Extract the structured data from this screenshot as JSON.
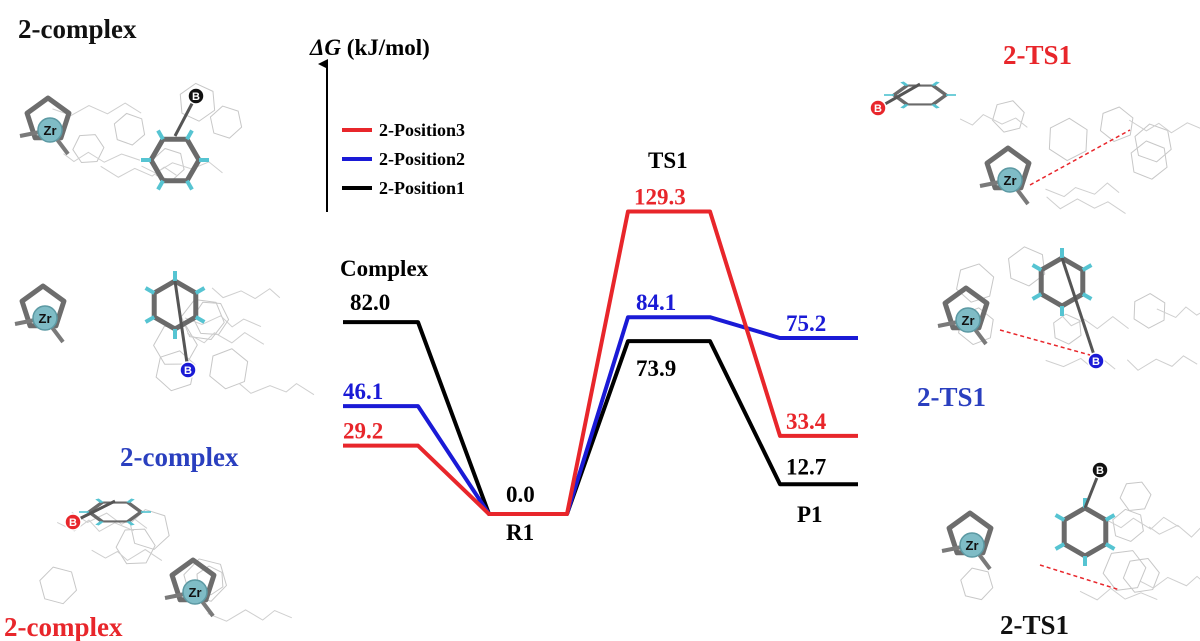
{
  "chart_data": {
    "type": "line",
    "ylabel_symbol": "ΔG",
    "ylabel_unit": "(kJ/mol)",
    "stage_labels": [
      "Complex",
      "R1",
      "TS1",
      "P1"
    ],
    "legend": [
      "2-Position3",
      "2-Position2",
      "2-Position1"
    ],
    "series": [
      {
        "name": "2-Position3",
        "color": "#e8262b",
        "values": [
          29.2,
          0.0,
          129.3,
          33.4
        ],
        "labels": [
          "29.2",
          "",
          "129.3",
          "33.4"
        ]
      },
      {
        "name": "2-Position2",
        "color": "#1a1ad6",
        "values": [
          46.1,
          0.0,
          84.1,
          75.2
        ],
        "labels": [
          "46.1",
          "",
          "84.1",
          "75.2"
        ]
      },
      {
        "name": "2-Position1",
        "color": "#000000",
        "values": [
          82.0,
          0.0,
          73.9,
          12.7
        ],
        "labels": [
          "82.0",
          "",
          "73.9",
          "12.7"
        ]
      }
    ],
    "r1_label": "0.0"
  },
  "structures": {
    "left": [
      {
        "caption": "2-complex",
        "caption_color": "#111111",
        "boron_color": "#111111"
      },
      {
        "caption": "2-complex",
        "caption_color": "#2a3fbf",
        "boron_color": "#1a1ad6"
      },
      {
        "caption": "2-complex",
        "caption_color": "#e8262b",
        "boron_color": "#e8262b"
      }
    ],
    "right": [
      {
        "caption": "2-TS1",
        "caption_color": "#e8262b",
        "boron_color": "#e8262b"
      },
      {
        "caption": "2-TS1",
        "caption_color": "#2a3fbf",
        "boron_color": "#1a1ad6"
      },
      {
        "caption": "2-TS1",
        "caption_color": "#111111",
        "boron_color": "#111111"
      }
    ],
    "zr_label": "Zr",
    "b_label": "B"
  }
}
